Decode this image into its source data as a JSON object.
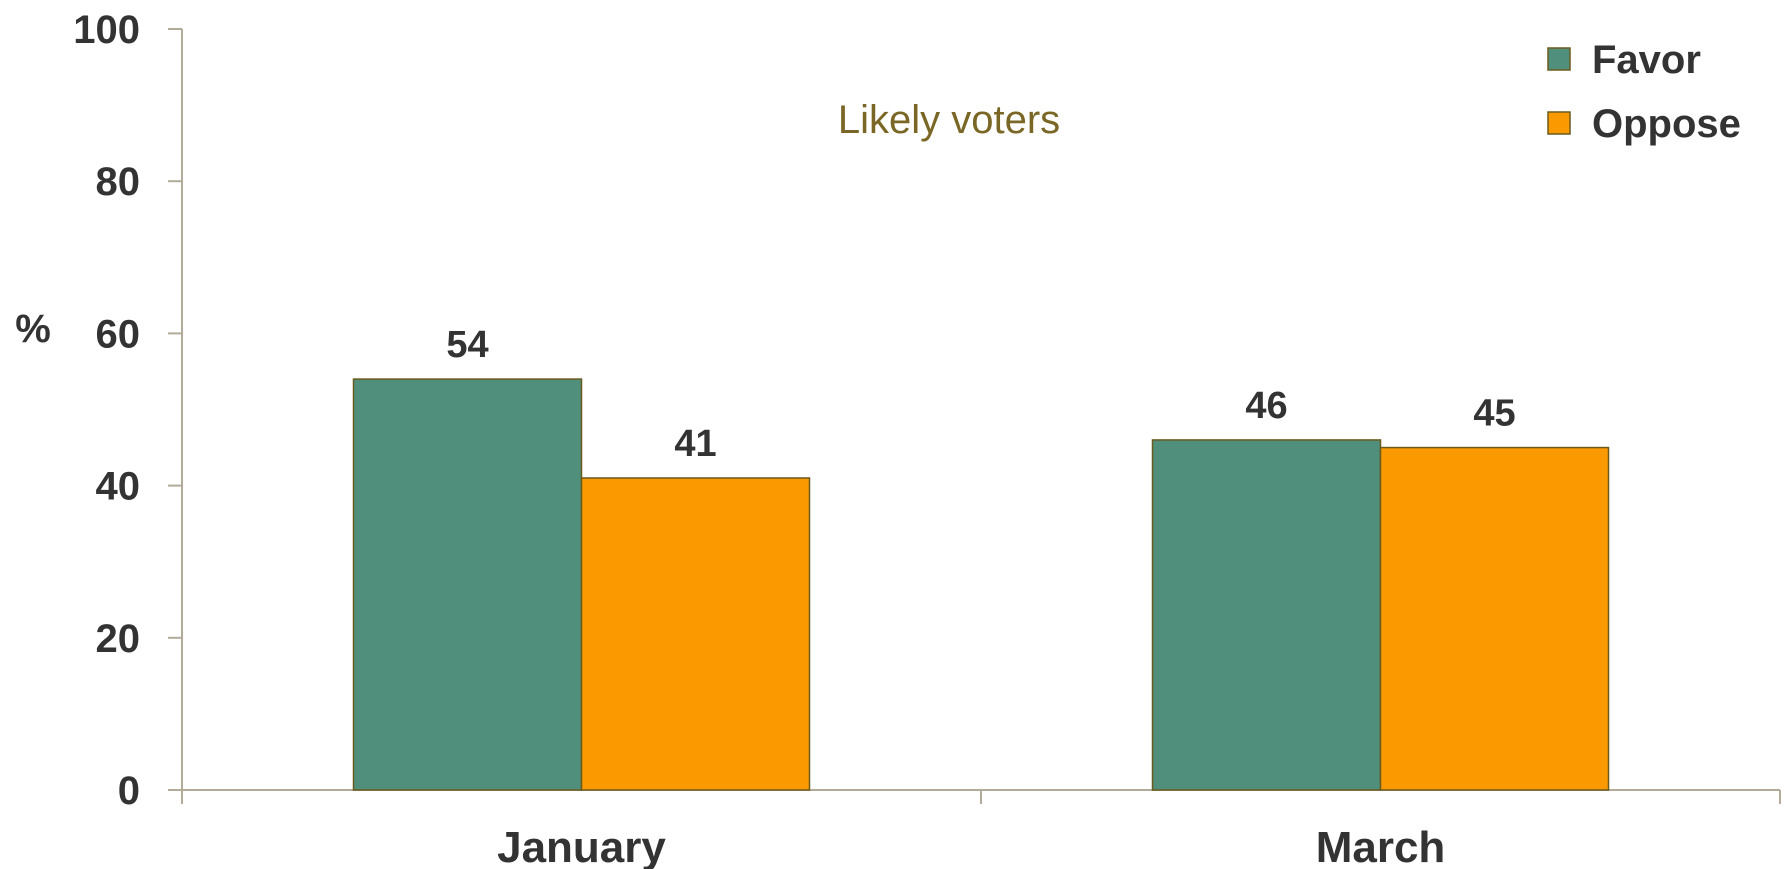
{
  "chart_data": {
    "type": "bar",
    "title": "",
    "subtitle": "Likely voters",
    "xlabel": "",
    "ylabel": "%",
    "ylim": [
      0,
      100
    ],
    "yticks": [
      0,
      20,
      40,
      60,
      80,
      100
    ],
    "categories": [
      "January",
      "March"
    ],
    "series": [
      {
        "name": "Favor",
        "values": [
          54,
          46
        ],
        "color": "#4f8f7c"
      },
      {
        "name": "Oppose",
        "values": [
          41,
          45
        ],
        "color": "#fb9900"
      }
    ],
    "legend_position": "top-right",
    "grid": false,
    "colors": {
      "axis": "#b3ab99",
      "text": "#333333",
      "subtitle": "#7a6725",
      "bar_border": "#6b5a1e"
    }
  }
}
